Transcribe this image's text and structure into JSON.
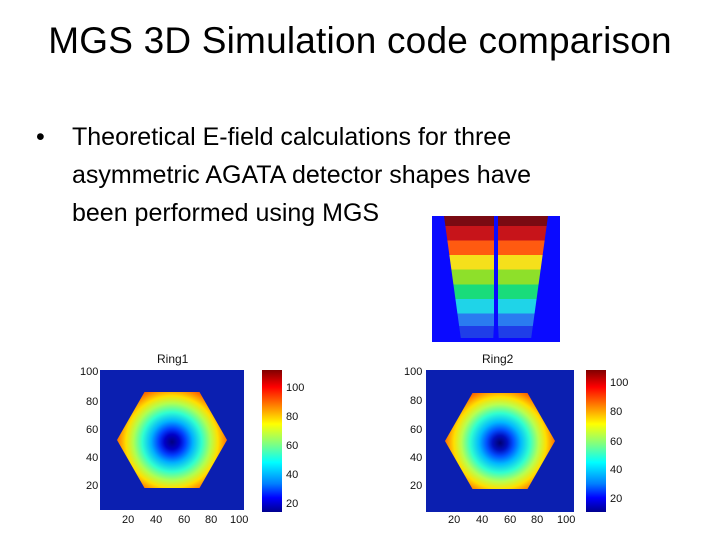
{
  "slide": {
    "title": "MGS 3D Simulation code comparison",
    "bullet": "•",
    "bullet_lines": [
      "Theoretical E-field calculations for three",
      "asymmetric AGATA detector shapes have",
      "been performed using MGS"
    ]
  },
  "plots": [
    {
      "title": "Ring1",
      "y_ticks": [
        "100",
        "80",
        "60",
        "40",
        "20"
      ],
      "x_ticks": [
        "20",
        "40",
        "60",
        "80",
        "100"
      ],
      "colorbar_ticks": [
        "100",
        "80",
        "60",
        "40",
        "20"
      ]
    },
    {
      "title": "Ring2",
      "y_ticks": [
        "100",
        "80",
        "60",
        "40",
        "20"
      ],
      "x_ticks": [
        "20",
        "40",
        "60",
        "80",
        "100"
      ],
      "colorbar_ticks": [
        "100",
        "80",
        "60",
        "40",
        "20"
      ]
    }
  ]
}
